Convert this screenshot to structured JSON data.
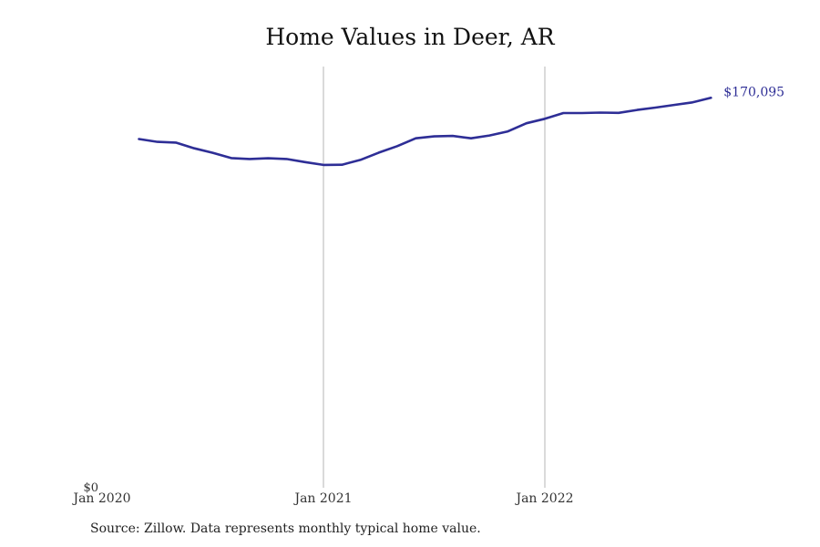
{
  "chart_data": {
    "type": "line",
    "title": "Home Values in Deer, AR",
    "source": "Source: Zillow. Data represents monthly typical home value.",
    "x_tick_labels": [
      "Jan 2020",
      "Jan 2021",
      "Jan 2022"
    ],
    "y_tick_labels": [
      "$0"
    ],
    "y_range": [
      0,
      180000
    ],
    "x_range": [
      "2020-01",
      "2022-12"
    ],
    "grid": "vertical lines at Jan 2021 and Jan 2022",
    "last_value_label": "$170,095",
    "line_color": "#2e2e96",
    "series": [
      {
        "x": [
          "2020-03",
          "2020-04",
          "2020-05",
          "2020-06",
          "2020-07",
          "2020-08",
          "2020-09",
          "2020-10",
          "2020-11",
          "2020-12",
          "2021-01",
          "2021-02",
          "2021-03",
          "2021-04",
          "2021-05",
          "2021-06",
          "2021-07",
          "2021-08",
          "2021-09",
          "2021-10",
          "2021-11",
          "2021-12",
          "2022-01",
          "2022-02",
          "2022-03",
          "2022-04",
          "2022-05",
          "2022-06",
          "2022-07",
          "2022-08",
          "2022-09",
          "2022-10"
        ],
        "values": [
          146500,
          145300,
          145000,
          142600,
          140700,
          138500,
          138100,
          138400,
          138100,
          136800,
          135600,
          135700,
          137700,
          140800,
          143500,
          146800,
          147600,
          147800,
          146800,
          148000,
          149700,
          153100,
          155000,
          157400,
          157400,
          157600,
          157500,
          158700,
          159700,
          160800,
          161900,
          163800
        ]
      }
    ]
  }
}
